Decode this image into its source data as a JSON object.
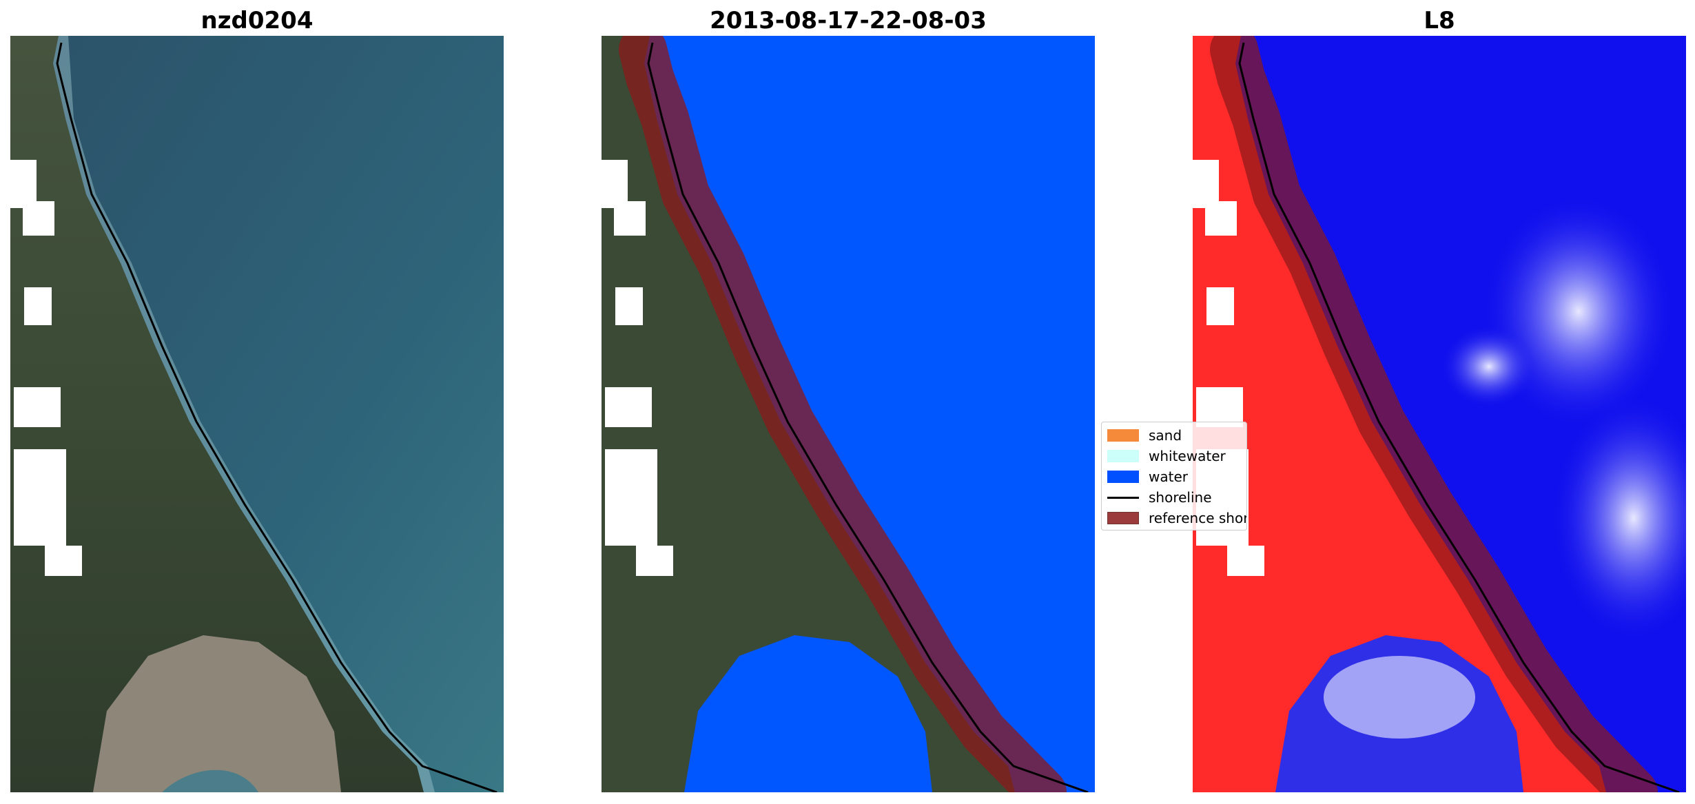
{
  "panels": [
    {
      "title": "nzd0204",
      "view": "rgb"
    },
    {
      "title": "2013-08-17-22-08-03",
      "view": "classified"
    },
    {
      "title": "L8",
      "view": "index"
    }
  ],
  "legend": {
    "items": [
      {
        "label": "sand",
        "color": "#f58a3a",
        "kind": "patch"
      },
      {
        "label": "whitewater",
        "color": "#ccfffa",
        "kind": "patch"
      },
      {
        "label": "water",
        "color": "#0050ff",
        "kind": "patch"
      },
      {
        "label": "shoreline",
        "color": "#000000",
        "kind": "line"
      },
      {
        "label": "reference shoreline",
        "color": "#8b1a1a",
        "kind": "patch"
      }
    ]
  },
  "colors": {
    "ocean_rgb": "#2e5f78",
    "land_rgb": "#3b4a35",
    "water_class": "#0050ff",
    "buffer": "#8b1a1a",
    "index_land": "#ff2a2a",
    "index_water": "#1010ee",
    "cloud_mask": "#ffffff"
  }
}
